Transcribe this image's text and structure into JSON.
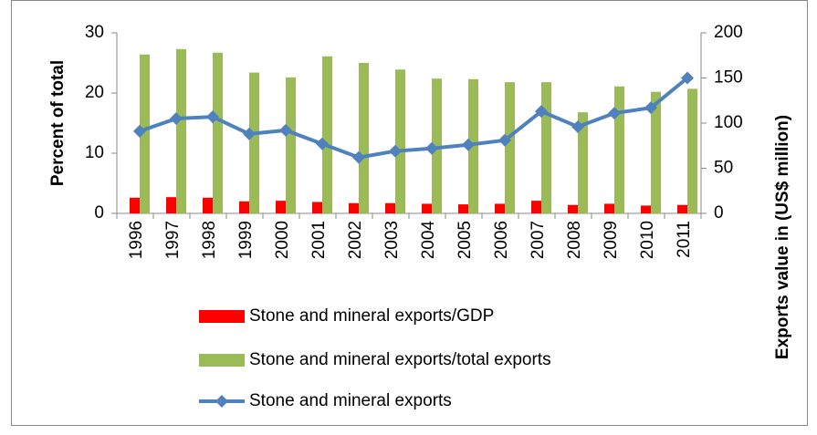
{
  "chart_data": {
    "type": "bar",
    "categories": [
      "1996",
      "1997",
      "1998",
      "1999",
      "2000",
      "2001",
      "2002",
      "2003",
      "2004",
      "2005",
      "2006",
      "2007",
      "2008",
      "2009",
      "2010",
      "2011"
    ],
    "series": [
      {
        "name": "Stone and mineral exports/GDP",
        "color": "#ff0000",
        "values": [
          2.6,
          2.7,
          2.6,
          2.0,
          2.1,
          1.9,
          1.7,
          1.7,
          1.6,
          1.5,
          1.6,
          2.1,
          1.4,
          1.6,
          1.3,
          1.4
        ]
      },
      {
        "name": "Stone and mineral exports/total exports",
        "color": "#9bbb59",
        "values": [
          26.4,
          27.3,
          26.7,
          23.4,
          22.6,
          26.1,
          25.0,
          23.9,
          22.4,
          22.3,
          21.8,
          21.8,
          16.8,
          21.1,
          20.2,
          20.7
        ]
      },
      {
        "name": "Stone and mineral exports",
        "color": "#4f81bd",
        "type": "line",
        "axis": "y2",
        "values": [
          91,
          105,
          107,
          88,
          92,
          77,
          62,
          69,
          72,
          76,
          81,
          113,
          96,
          111,
          117,
          150
        ]
      }
    ],
    "y_label": "Percent of total",
    "y2_label": "Exports value in (US$ million)",
    "ylim": [
      0,
      30
    ],
    "yticks": [
      0,
      10,
      20,
      30
    ],
    "y2lim": [
      0,
      200
    ],
    "y2ticks": [
      0,
      50,
      100,
      150,
      200
    ]
  }
}
